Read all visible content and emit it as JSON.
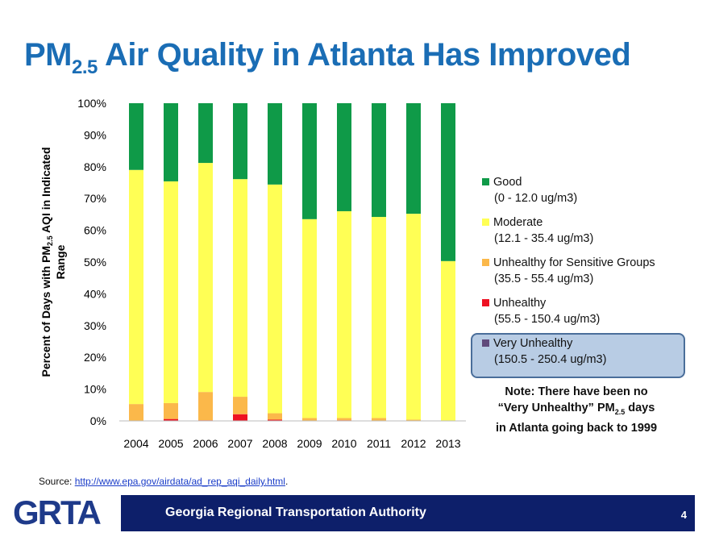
{
  "title": {
    "main": "PM",
    "sub": "2.5",
    "rest": " Air Quality in Atlanta Has Improved"
  },
  "chart_data": {
    "type": "bar",
    "stacked": true,
    "ylabel": "Percent of Days with PM2.5 AQI in Indicated Range",
    "ylabel_parts": {
      "a": "Percent of Days with PM",
      "sub": "2.5",
      "b": " AQI in Indicated",
      "c": "Range"
    },
    "ylim": [
      0,
      100
    ],
    "yticks": [
      "0%",
      "10%",
      "20%",
      "30%",
      "40%",
      "50%",
      "60%",
      "70%",
      "80%",
      "90%",
      "100%"
    ],
    "categories": [
      "2004",
      "2005",
      "2006",
      "2007",
      "2008",
      "2009",
      "2010",
      "2011",
      "2012",
      "2013"
    ],
    "series": [
      {
        "name": "Very Unhealthy",
        "range": "(150.5 - 250.4 ug/m3)",
        "color": "#604a7b",
        "values": [
          0,
          0,
          0,
          0,
          0,
          0,
          0,
          0,
          0,
          0
        ]
      },
      {
        "name": "Unhealthy",
        "range": "(55.5 - 150.4 ug/m3)",
        "color": "#ee1122",
        "values": [
          0,
          0.6,
          0.2,
          2.1,
          0.4,
          0,
          0.2,
          0,
          0,
          0
        ]
      },
      {
        "name": "Unhealthy for Sensitive Groups",
        "range": "(35.5 - 55.4 ug/m3)",
        "color": "#fbb84a",
        "values": [
          5.3,
          5.0,
          8.9,
          5.5,
          2.0,
          0.9,
          0.7,
          0.9,
          0.4,
          0
        ]
      },
      {
        "name": "Moderate",
        "range": "(12.1 - 35.4 ug/m3)",
        "color": "#ffff55",
        "values": [
          73.7,
          69.8,
          72.1,
          68.5,
          72.0,
          62.6,
          65.1,
          63.3,
          64.8,
          50.3
        ]
      },
      {
        "name": "Good",
        "range": "(0 - 12.0 ug/m3)",
        "color": "#0f9a48",
        "values": [
          21.0,
          24.6,
          18.8,
          23.9,
          25.6,
          36.5,
          34.0,
          35.8,
          34.8,
          49.7
        ]
      }
    ],
    "legend_position": "right",
    "grid": false
  },
  "note": {
    "line1": "Note:  There have been no",
    "line2a": "“Very Unhealthy” PM",
    "line2sub": "2.5",
    "line2b": " days",
    "line3": "in Atlanta going back to 1999"
  },
  "source": {
    "label": "Source: ",
    "link": "http://www.epa.gov/airdata/ad_rep_aqi_daily.html",
    "tail": "."
  },
  "footer": {
    "logo": "GRTA",
    "org": "Georgia Regional Transportation Authority",
    "page": "4",
    "color": "#0d1f6a"
  }
}
